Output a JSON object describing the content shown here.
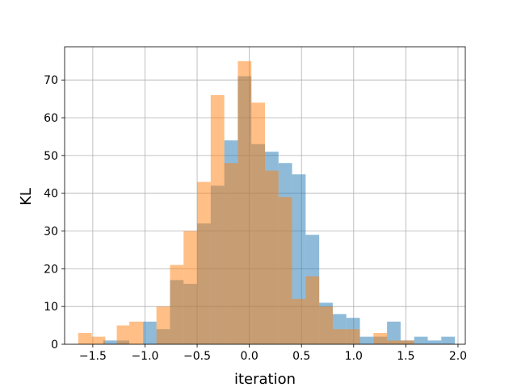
{
  "chart_data": {
    "type": "histogram",
    "title": "",
    "xlabel": "iteration",
    "ylabel": "KL",
    "xlim": [
      -1.77,
      2.07
    ],
    "ylim": [
      0,
      78.8
    ],
    "xticks": [
      -1.5,
      -1.0,
      -0.5,
      0.0,
      0.5,
      1.0,
      1.5,
      2.0
    ],
    "xtick_labels": [
      "−1.5",
      "−1.0",
      "−0.5",
      "0.0",
      "0.5",
      "1.0",
      "1.5",
      "2.0"
    ],
    "yticks": [
      0,
      10,
      20,
      30,
      40,
      50,
      60,
      70
    ],
    "ytick_labels": [
      "0",
      "10",
      "20",
      "30",
      "40",
      "50",
      "60",
      "70"
    ],
    "grid": true,
    "legend": false,
    "series": [
      {
        "color": "#1f77b4",
        "alpha": 0.5,
        "bins": [
          {
            "x0": -1.4,
            "x1": -1.27,
            "count": 1
          },
          {
            "x0": -1.27,
            "x1": -1.15,
            "count": 1
          },
          {
            "x0": -1.02,
            "x1": -0.89,
            "count": 6
          },
          {
            "x0": -0.89,
            "x1": -0.76,
            "count": 4
          },
          {
            "x0": -0.76,
            "x1": -0.63,
            "count": 17
          },
          {
            "x0": -0.63,
            "x1": -0.5,
            "count": 16
          },
          {
            "x0": -0.5,
            "x1": -0.37,
            "count": 32
          },
          {
            "x0": -0.37,
            "x1": -0.24,
            "count": 42
          },
          {
            "x0": -0.24,
            "x1": -0.11,
            "count": 54
          },
          {
            "x0": -0.11,
            "x1": 0.02,
            "count": 71
          },
          {
            "x0": 0.02,
            "x1": 0.15,
            "count": 53
          },
          {
            "x0": 0.15,
            "x1": 0.28,
            "count": 51
          },
          {
            "x0": 0.28,
            "x1": 0.41,
            "count": 48
          },
          {
            "x0": 0.41,
            "x1": 0.54,
            "count": 45
          },
          {
            "x0": 0.54,
            "x1": 0.67,
            "count": 29
          },
          {
            "x0": 0.67,
            "x1": 0.8,
            "count": 11
          },
          {
            "x0": 0.8,
            "x1": 0.93,
            "count": 8
          },
          {
            "x0": 0.93,
            "x1": 1.06,
            "count": 7
          },
          {
            "x0": 1.06,
            "x1": 1.19,
            "count": 2
          },
          {
            "x0": 1.19,
            "x1": 1.32,
            "count": 2
          },
          {
            "x0": 1.32,
            "x1": 1.45,
            "count": 6
          },
          {
            "x0": 1.45,
            "x1": 1.58,
            "count": 1
          },
          {
            "x0": 1.58,
            "x1": 1.71,
            "count": 2
          },
          {
            "x0": 1.71,
            "x1": 1.84,
            "count": 1
          },
          {
            "x0": 1.84,
            "x1": 1.97,
            "count": 2
          }
        ]
      },
      {
        "color": "#ff7f0e",
        "alpha": 0.5,
        "bins": [
          {
            "x0": -1.64,
            "x1": -1.51,
            "count": 3
          },
          {
            "x0": -1.51,
            "x1": -1.38,
            "count": 2
          },
          {
            "x0": -1.27,
            "x1": -1.15,
            "count": 5
          },
          {
            "x0": -1.15,
            "x1": -1.02,
            "count": 6
          },
          {
            "x0": -0.89,
            "x1": -0.76,
            "count": 10
          },
          {
            "x0": -0.76,
            "x1": -0.63,
            "count": 21
          },
          {
            "x0": -0.63,
            "x1": -0.5,
            "count": 30
          },
          {
            "x0": -0.5,
            "x1": -0.37,
            "count": 43
          },
          {
            "x0": -0.37,
            "x1": -0.24,
            "count": 66
          },
          {
            "x0": -0.24,
            "x1": -0.11,
            "count": 48
          },
          {
            "x0": -0.11,
            "x1": 0.02,
            "count": 75
          },
          {
            "x0": 0.02,
            "x1": 0.15,
            "count": 64
          },
          {
            "x0": 0.15,
            "x1": 0.28,
            "count": 46
          },
          {
            "x0": 0.28,
            "x1": 0.41,
            "count": 39
          },
          {
            "x0": 0.41,
            "x1": 0.54,
            "count": 12
          },
          {
            "x0": 0.54,
            "x1": 0.67,
            "count": 18
          },
          {
            "x0": 0.67,
            "x1": 0.8,
            "count": 10
          },
          {
            "x0": 0.8,
            "x1": 0.93,
            "count": 4
          },
          {
            "x0": 0.93,
            "x1": 1.06,
            "count": 4
          },
          {
            "x0": 1.19,
            "x1": 1.32,
            "count": 3
          },
          {
            "x0": 1.32,
            "x1": 1.45,
            "count": 1
          },
          {
            "x0": 1.45,
            "x1": 1.58,
            "count": 1
          }
        ]
      }
    ]
  }
}
